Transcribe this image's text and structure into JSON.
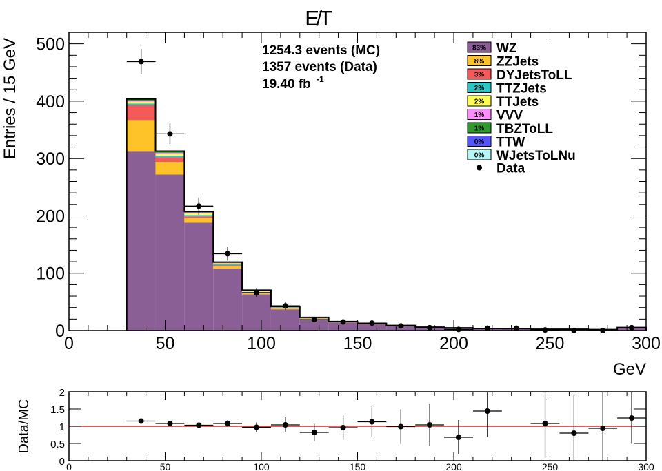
{
  "chart_data": [
    {
      "type": "bar",
      "stacked": true,
      "title": "E̸T",
      "xlabel": "GeV",
      "ylabel": "Entries / 15 GeV",
      "xlim": [
        0,
        300
      ],
      "ylim": [
        0,
        520
      ],
      "x_ticks": [
        0,
        50,
        100,
        150,
        200,
        250,
        300
      ],
      "y_ticks": [
        0,
        100,
        200,
        300,
        400,
        500
      ],
      "bin_edges": [
        30,
        45,
        60,
        75,
        90,
        105,
        120,
        135,
        150,
        165,
        180,
        195,
        210,
        225,
        240,
        255,
        270,
        285,
        300
      ],
      "annotations": [
        "1254.3 events (MC)",
        "1357 events (Data)",
        "19.40 fb",
        "-1"
      ],
      "legend_position": "top-right",
      "series": [
        {
          "name": "WZ",
          "pct": "83%",
          "color": "#8a5f96",
          "values": [
            312,
            272,
            188,
            108,
            63,
            37,
            20,
            14,
            11,
            8,
            5,
            4,
            3,
            3,
            2,
            2,
            1.5,
            5
          ]
        },
        {
          "name": "ZZJets",
          "pct": "8%",
          "color": "#ffc32a",
          "values": [
            55,
            22,
            8,
            4,
            2,
            1.5,
            1,
            0.5,
            0.4,
            0.3,
            0.2,
            0.2,
            0.1,
            0.1,
            0.1,
            0.1,
            0.1,
            0.1
          ]
        },
        {
          "name": "DYJetsToLL",
          "pct": "3%",
          "color": "#f55a5a",
          "values": [
            26,
            8,
            3,
            1.5,
            1,
            0.5,
            0.3,
            0.2,
            0.1,
            0.1,
            0.1,
            0.1,
            0,
            0,
            0,
            0,
            0,
            0
          ]
        },
        {
          "name": "TTZJets",
          "pct": "2%",
          "color": "#2ec4c4",
          "values": [
            3,
            3,
            2.5,
            2,
            1.5,
            1,
            0.6,
            0.4,
            0.3,
            0.2,
            0.2,
            0.1,
            0.1,
            0.1,
            0.1,
            0.1,
            0,
            0.1
          ]
        },
        {
          "name": "TTJets",
          "pct": "2%",
          "color": "#ffff55",
          "values": [
            3,
            3,
            2.5,
            1.5,
            1,
            0.6,
            0.4,
            0.3,
            0.2,
            0.1,
            0.1,
            0.1,
            0.1,
            0,
            0,
            0,
            0,
            0
          ]
        },
        {
          "name": "VVV",
          "pct": "1%",
          "color": "#ff8cff",
          "values": [
            2,
            2,
            1.5,
            1,
            0.8,
            0.5,
            0.3,
            0.2,
            0.2,
            0.1,
            0.1,
            0.1,
            0.1,
            0.1,
            0,
            0,
            0,
            0
          ]
        },
        {
          "name": "TBZToLL",
          "pct": "1%",
          "color": "#2e9a2e",
          "values": [
            2,
            2,
            1.5,
            1,
            0.8,
            0.5,
            0.3,
            0.2,
            0.2,
            0.1,
            0.1,
            0.1,
            0,
            0,
            0,
            0,
            0,
            0
          ]
        },
        {
          "name": "TTW",
          "pct": "0%",
          "color": "#5555ff",
          "values": [
            0.5,
            0.5,
            0.4,
            0.3,
            0.2,
            0.1,
            0.1,
            0,
            0,
            0,
            0,
            0,
            0,
            0,
            0,
            0,
            0,
            0
          ]
        },
        {
          "name": "WJetsToLNu",
          "pct": "0%",
          "color": "#b8f5f5",
          "values": [
            0.3,
            0.3,
            0.2,
            0.1,
            0.1,
            0,
            0,
            0,
            0,
            0,
            0,
            0,
            0,
            0,
            0,
            0,
            0,
            0
          ]
        }
      ],
      "data": {
        "name": "Data",
        "x": [
          37.5,
          52.5,
          67.5,
          82.5,
          97.5,
          112.5,
          127.5,
          142.5,
          157.5,
          172.5,
          187.5,
          202.5,
          217.5,
          232.5,
          247.5,
          262.5,
          277.5,
          292.5
        ],
        "y": [
          469,
          343,
          217,
          134,
          66,
          43,
          19,
          15,
          13,
          8,
          5,
          2,
          4,
          4,
          1,
          0,
          0,
          5
        ],
        "yerr": [
          22,
          18,
          15,
          12,
          8,
          7,
          4,
          4,
          4,
          3,
          2,
          1.4,
          2,
          2,
          1,
          0,
          0,
          2
        ],
        "xerr": 7.5
      }
    },
    {
      "type": "scatter",
      "xlabel": "",
      "ylabel": "Data/MC",
      "xlim": [
        0,
        300
      ],
      "ylim": [
        0,
        2
      ],
      "x_ticks": [
        0,
        50,
        100,
        150,
        200,
        250,
        300
      ],
      "y_ticks": [
        "0",
        "0.5",
        "1",
        "1.5",
        "2"
      ],
      "reference_line": 1,
      "reference_color": "#cc0000",
      "x": [
        37.5,
        52.5,
        67.5,
        82.5,
        97.5,
        112.5,
        127.5,
        142.5,
        157.5,
        172.5,
        187.5,
        202.5,
        217.5,
        247.5,
        262.5,
        277.5,
        292.5
      ],
      "y": [
        1.15,
        1.08,
        1.03,
        1.08,
        0.97,
        1.04,
        0.82,
        0.96,
        1.13,
        0.99,
        1.04,
        0.68,
        1.44,
        1.08,
        0.8,
        0.94,
        1.24
      ],
      "yerr": [
        0.06,
        0.07,
        0.08,
        0.1,
        0.14,
        0.22,
        0.25,
        0.35,
        0.45,
        0.5,
        0.6,
        0.5,
        0.75,
        1.0,
        1.1,
        1.1,
        0.75
      ],
      "xerr": 7.5
    }
  ]
}
